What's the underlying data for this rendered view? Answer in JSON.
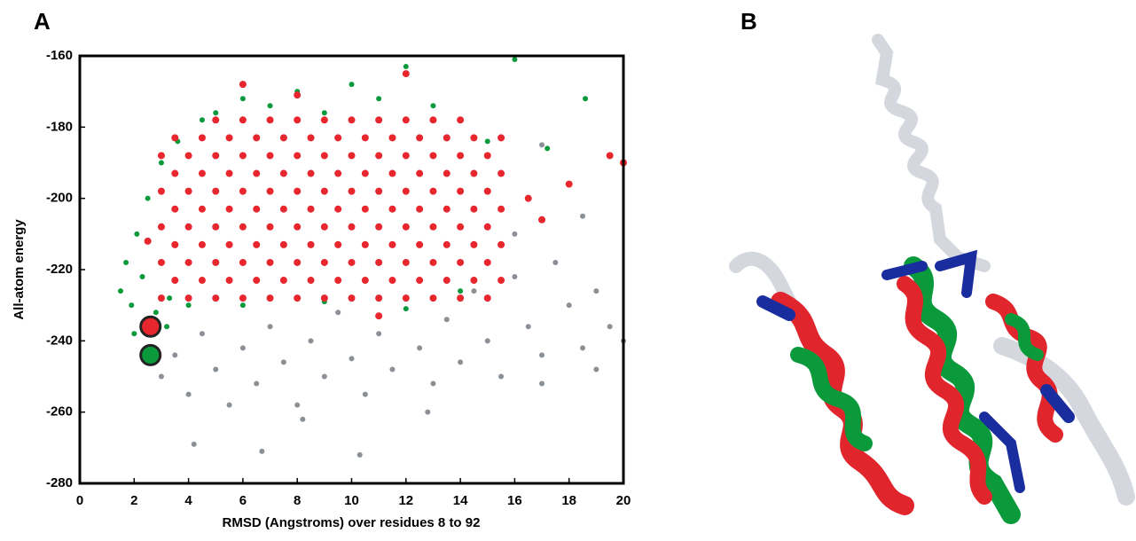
{
  "chart_data": {
    "type": "scatter",
    "panel_label": "A",
    "x_label": "RMSD (Angstroms) over residues 8 to 92",
    "y_label": "All-atom energy",
    "xlim": [
      0,
      20
    ],
    "ylim": [
      -280,
      -160
    ],
    "xticks": [
      0,
      2,
      4,
      6,
      8,
      10,
      12,
      14,
      16,
      18,
      20
    ],
    "yticks": [
      -280,
      -260,
      -240,
      -220,
      -200,
      -180,
      -160
    ],
    "series": [
      {
        "color": "#8a9096",
        "marker_radius": 3,
        "x": [
          3,
          3.5,
          4,
          4.5,
          5,
          5.5,
          6,
          6.5,
          7,
          7.5,
          8,
          8.5,
          9,
          9.5,
          10,
          10.5,
          11,
          11.5,
          12,
          12.5,
          13,
          13.5,
          14,
          14.5,
          15,
          15.5,
          16,
          16.5,
          17,
          17.5,
          18,
          18.5,
          19,
          19.5,
          20,
          4.2,
          6.7,
          10.3,
          8.2,
          12.8,
          17,
          19,
          16,
          18.5,
          17
        ],
        "y": [
          -250,
          -244,
          -255,
          -238,
          -248,
          -258,
          -242,
          -252,
          -236,
          -246,
          -258,
          -240,
          -250,
          -232,
          -245,
          -255,
          -238,
          -248,
          -228,
          -242,
          -252,
          -234,
          -246,
          -226,
          -240,
          -250,
          -222,
          -236,
          -244,
          -218,
          -230,
          -242,
          -226,
          -236,
          -240,
          -269,
          -271,
          -272,
          -262,
          -260,
          -252,
          -248,
          -210,
          -205,
          -185
        ]
      },
      {
        "color": "#0a9a3c",
        "marker_radius": 3,
        "x": [
          1.5,
          1.7,
          1.9,
          2.1,
          2.3,
          2.5,
          2.8,
          3,
          3.3,
          3.6,
          4,
          4.5,
          5,
          6,
          7,
          8,
          9,
          10,
          11,
          12,
          13,
          14,
          15,
          16,
          17.2,
          18.6,
          6,
          9,
          12,
          3.2,
          2,
          14
        ],
        "y": [
          -226,
          -218,
          -230,
          -210,
          -222,
          -200,
          -232,
          -190,
          -228,
          -184,
          -230,
          -178,
          -176,
          -172,
          -174,
          -170,
          -176,
          -168,
          -172,
          -163,
          -174,
          -178,
          -184,
          -161,
          -186,
          -172,
          -230,
          -229,
          -231,
          -236,
          -238,
          -226
        ]
      },
      {
        "color": "#e8262d",
        "marker_radius": 4,
        "x": [
          3,
          4,
          5,
          6,
          7,
          8,
          9,
          10,
          11,
          12,
          13,
          14,
          15,
          3.5,
          4.5,
          5.5,
          6.5,
          7.5,
          8.5,
          9.5,
          10.5,
          11.5,
          12.5,
          13.5,
          14.5,
          15.5,
          3,
          4,
          5,
          6,
          7,
          8,
          9,
          10,
          11,
          12,
          13,
          14,
          15,
          3.5,
          4.5,
          5.5,
          6.5,
          7.5,
          8.5,
          9.5,
          10.5,
          11.5,
          12.5,
          13.5,
          14.5,
          15.5,
          3,
          4,
          5,
          6,
          7,
          8,
          9,
          10,
          11,
          12,
          13,
          14,
          15,
          3.5,
          4.5,
          5.5,
          6.5,
          7.5,
          8.5,
          9.5,
          10.5,
          11.5,
          12.5,
          13.5,
          14.5,
          15.5,
          3,
          4,
          5,
          6,
          7,
          8,
          9,
          10,
          11,
          12,
          13,
          14,
          15,
          3.5,
          4.5,
          5.5,
          6.5,
          7.5,
          8.5,
          9.5,
          10.5,
          11.5,
          12.5,
          13.5,
          14.5,
          15.5,
          3,
          4,
          5,
          6,
          7,
          8,
          9,
          10,
          11,
          12,
          13,
          14,
          15,
          3.5,
          4.5,
          5.5,
          6.5,
          7.5,
          8.5,
          9.5,
          10.5,
          11.5,
          12.5,
          13.5,
          14.5,
          15.5,
          5,
          6,
          7,
          8,
          9,
          10,
          11,
          12,
          13,
          14,
          6,
          8,
          16.5,
          18,
          19.5,
          20,
          17,
          11,
          2.5,
          12
        ],
        "y": [
          -228,
          -228,
          -228,
          -228,
          -228,
          -228,
          -228,
          -228,
          -228,
          -228,
          -228,
          -228,
          -228,
          -223,
          -223,
          -223,
          -223,
          -223,
          -223,
          -223,
          -223,
          -223,
          -223,
          -223,
          -223,
          -223,
          -218,
          -218,
          -218,
          -218,
          -218,
          -218,
          -218,
          -218,
          -218,
          -218,
          -218,
          -218,
          -218,
          -213,
          -213,
          -213,
          -213,
          -213,
          -213,
          -213,
          -213,
          -213,
          -213,
          -213,
          -213,
          -213,
          -208,
          -208,
          -208,
          -208,
          -208,
          -208,
          -208,
          -208,
          -208,
          -208,
          -208,
          -208,
          -208,
          -203,
          -203,
          -203,
          -203,
          -203,
          -203,
          -203,
          -203,
          -203,
          -203,
          -203,
          -203,
          -203,
          -198,
          -198,
          -198,
          -198,
          -198,
          -198,
          -198,
          -198,
          -198,
          -198,
          -198,
          -198,
          -198,
          -193,
          -193,
          -193,
          -193,
          -193,
          -193,
          -193,
          -193,
          -193,
          -193,
          -193,
          -193,
          -193,
          -188,
          -188,
          -188,
          -188,
          -188,
          -188,
          -188,
          -188,
          -188,
          -188,
          -188,
          -188,
          -188,
          -183,
          -183,
          -183,
          -183,
          -183,
          -183,
          -183,
          -183,
          -183,
          -183,
          -183,
          -183,
          -183,
          -178,
          -178,
          -178,
          -178,
          -178,
          -178,
          -178,
          -178,
          -178,
          -178,
          -168,
          -171,
          -200,
          -196,
          -188,
          -190,
          -206,
          -233,
          -212,
          -165
        ]
      },
      {
        "color": "#e8262d",
        "marker_radius": 11,
        "outline": "#222222",
        "x": [
          2.6
        ],
        "y": [
          -236
        ]
      },
      {
        "color": "#0a9a3c",
        "marker_radius": 11,
        "outline": "#222222",
        "x": [
          2.6
        ],
        "y": [
          -244
        ]
      }
    ]
  },
  "panel_b": {
    "label": "B"
  }
}
